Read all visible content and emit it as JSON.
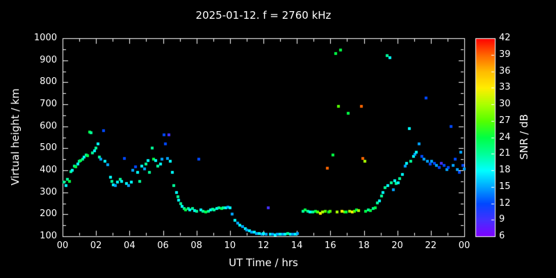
{
  "title": "2025-01-12. f = 2760 kHz",
  "colors": {
    "background": "#000000",
    "foreground": "#ffffff"
  },
  "axes": {
    "x": {
      "label": "UT Time / hrs",
      "min": 0,
      "max": 24,
      "major_tick_hours": 2,
      "minor_tick_hours": 1,
      "tick_labels": [
        "00",
        "02",
        "04",
        "06",
        "08",
        "10",
        "12",
        "14",
        "16",
        "18",
        "20",
        "22",
        "00"
      ]
    },
    "y": {
      "label": "Virtual height / km",
      "min": 100,
      "max": 1000,
      "major_tick": 100,
      "minor_tick": 50,
      "tick_labels": [
        "100",
        "200",
        "300",
        "400",
        "500",
        "600",
        "700",
        "800",
        "900",
        "1000"
      ]
    }
  },
  "colorbar": {
    "label": "SNR / dB",
    "min": 6,
    "max": 42,
    "tick_labels": [
      "6",
      "9",
      "12",
      "15",
      "18",
      "21",
      "24",
      "27",
      "30",
      "33",
      "36",
      "39",
      "42"
    ],
    "stops": [
      [
        6,
        "#8000ff"
      ],
      [
        9,
        "#4430ff"
      ],
      [
        12,
        "#0048ff"
      ],
      [
        15,
        "#00a4ff"
      ],
      [
        18,
        "#00ffff"
      ],
      [
        21,
        "#00ff99"
      ],
      [
        24,
        "#00ff44"
      ],
      [
        27,
        "#55ff00"
      ],
      [
        30,
        "#aaff00"
      ],
      [
        33,
        "#ffee00"
      ],
      [
        36,
        "#ffbb00"
      ],
      [
        39,
        "#ff6600"
      ],
      [
        42,
        "#ff0000"
      ]
    ]
  },
  "chart_data": {
    "type": "scatter",
    "title": "2025-01-12. f = 2760 kHz",
    "xlabel": "UT Time / hrs",
    "ylabel": "Virtual height / km",
    "color_label": "SNR / dB",
    "xlim": [
      0,
      24
    ],
    "ylim": [
      100,
      1000
    ],
    "clim": [
      6,
      42
    ],
    "grid": false,
    "point_format": [
      "ut_hours",
      "virtual_height_km",
      "snr_db"
    ],
    "points": [
      [
        0.1,
        345,
        21
      ],
      [
        0.2,
        330,
        18
      ],
      [
        0.3,
        360,
        21
      ],
      [
        0.4,
        350,
        24
      ],
      [
        0.5,
        395,
        21
      ],
      [
        0.6,
        400,
        18
      ],
      [
        0.7,
        420,
        21
      ],
      [
        0.8,
        415,
        24
      ],
      [
        0.9,
        430,
        18
      ],
      [
        1.0,
        440,
        21
      ],
      [
        1.1,
        445,
        24
      ],
      [
        1.2,
        450,
        21
      ],
      [
        1.3,
        460,
        18
      ],
      [
        1.4,
        470,
        21
      ],
      [
        1.5,
        465,
        24
      ],
      [
        1.6,
        575,
        24
      ],
      [
        1.7,
        570,
        21
      ],
      [
        1.8,
        480,
        21
      ],
      [
        1.9,
        490,
        18
      ],
      [
        2.0,
        500,
        21
      ],
      [
        2.1,
        520,
        18
      ],
      [
        2.2,
        460,
        21
      ],
      [
        2.3,
        450,
        15
      ],
      [
        2.45,
        580,
        12
      ],
      [
        2.55,
        440,
        18
      ],
      [
        2.7,
        425,
        15
      ],
      [
        2.85,
        370,
        18
      ],
      [
        2.95,
        350,
        21
      ],
      [
        3.05,
        335,
        18
      ],
      [
        3.15,
        330,
        15
      ],
      [
        3.3,
        345,
        18
      ],
      [
        3.45,
        360,
        21
      ],
      [
        3.55,
        350,
        18
      ],
      [
        3.7,
        455,
        12
      ],
      [
        3.8,
        340,
        18
      ],
      [
        3.95,
        330,
        15
      ],
      [
        4.1,
        345,
        18
      ],
      [
        4.2,
        400,
        15
      ],
      [
        4.35,
        415,
        12
      ],
      [
        4.5,
        390,
        18
      ],
      [
        4.6,
        350,
        21
      ],
      [
        4.75,
        420,
        18
      ],
      [
        4.9,
        405,
        15
      ],
      [
        5.0,
        430,
        21
      ],
      [
        5.1,
        445,
        18
      ],
      [
        5.2,
        390,
        21
      ],
      [
        5.35,
        500,
        21
      ],
      [
        5.45,
        450,
        24
      ],
      [
        5.55,
        445,
        18
      ],
      [
        5.7,
        420,
        21
      ],
      [
        5.85,
        430,
        18
      ],
      [
        5.95,
        450,
        15
      ],
      [
        6.05,
        560,
        12
      ],
      [
        6.15,
        520,
        12
      ],
      [
        6.25,
        455,
        15
      ],
      [
        6.35,
        560,
        9
      ],
      [
        6.45,
        440,
        18
      ],
      [
        6.55,
        390,
        18
      ],
      [
        6.65,
        330,
        21
      ],
      [
        6.8,
        300,
        18
      ],
      [
        6.9,
        280,
        21
      ],
      [
        6.95,
        265,
        18
      ],
      [
        7.05,
        250,
        21
      ],
      [
        7.15,
        235,
        18
      ],
      [
        7.25,
        225,
        21
      ],
      [
        7.35,
        220,
        24
      ],
      [
        7.5,
        225,
        21
      ],
      [
        7.6,
        220,
        18
      ],
      [
        7.75,
        225,
        21
      ],
      [
        7.9,
        218,
        18
      ],
      [
        8.0,
        215,
        21
      ],
      [
        8.15,
        450,
        12
      ],
      [
        8.25,
        220,
        18
      ],
      [
        8.4,
        215,
        21
      ],
      [
        8.55,
        212,
        24
      ],
      [
        8.7,
        215,
        21
      ],
      [
        8.85,
        220,
        18
      ],
      [
        8.95,
        222,
        21
      ],
      [
        9.05,
        220,
        21
      ],
      [
        9.2,
        225,
        18
      ],
      [
        9.35,
        228,
        21
      ],
      [
        9.5,
        225,
        24
      ],
      [
        9.6,
        230,
        21
      ],
      [
        9.75,
        228,
        18
      ],
      [
        9.9,
        232,
        15
      ],
      [
        10.0,
        228,
        18
      ],
      [
        10.15,
        200,
        15
      ],
      [
        10.3,
        172,
        18
      ],
      [
        10.45,
        160,
        15
      ],
      [
        10.6,
        150,
        18
      ],
      [
        10.75,
        145,
        15
      ],
      [
        10.9,
        136,
        18
      ],
      [
        11.0,
        130,
        15
      ],
      [
        11.15,
        126,
        18
      ],
      [
        11.3,
        120,
        15
      ],
      [
        11.45,
        118,
        18
      ],
      [
        11.6,
        114,
        15
      ],
      [
        11.75,
        112,
        18
      ],
      [
        11.9,
        110,
        15
      ],
      [
        12.0,
        112,
        18
      ],
      [
        12.15,
        110,
        15
      ],
      [
        12.3,
        230,
        9
      ],
      [
        12.4,
        108,
        18
      ],
      [
        12.55,
        110,
        15
      ],
      [
        12.7,
        106,
        18
      ],
      [
        12.85,
        108,
        15
      ],
      [
        13.0,
        110,
        18
      ],
      [
        13.15,
        108,
        15
      ],
      [
        13.3,
        110,
        18
      ],
      [
        13.45,
        112,
        21
      ],
      [
        13.6,
        110,
        18
      ],
      [
        13.75,
        108,
        15
      ],
      [
        13.9,
        110,
        18
      ],
      [
        14.05,
        112,
        15
      ],
      [
        14.35,
        215,
        21
      ],
      [
        14.5,
        220,
        24
      ],
      [
        14.65,
        215,
        21
      ],
      [
        14.8,
        212,
        18
      ],
      [
        14.95,
        210,
        21
      ],
      [
        15.1,
        215,
        24
      ],
      [
        15.25,
        210,
        27
      ],
      [
        15.4,
        205,
        33
      ],
      [
        15.55,
        210,
        30
      ],
      [
        15.7,
        215,
        27
      ],
      [
        15.8,
        410,
        39
      ],
      [
        15.9,
        210,
        24
      ],
      [
        16.0,
        215,
        27
      ],
      [
        16.15,
        470,
        24
      ],
      [
        16.3,
        930,
        24
      ],
      [
        16.4,
        212,
        30
      ],
      [
        16.5,
        690,
        27
      ],
      [
        16.6,
        945,
        24
      ],
      [
        16.7,
        215,
        33
      ],
      [
        16.85,
        210,
        27
      ],
      [
        16.95,
        212,
        24
      ],
      [
        17.05,
        660,
        24
      ],
      [
        17.15,
        215,
        30
      ],
      [
        17.3,
        212,
        33
      ],
      [
        17.45,
        215,
        27
      ],
      [
        17.55,
        220,
        24
      ],
      [
        17.7,
        216,
        30
      ],
      [
        17.85,
        690,
        39
      ],
      [
        17.95,
        455,
        39
      ],
      [
        18.05,
        440,
        30
      ],
      [
        18.1,
        215,
        24
      ],
      [
        18.25,
        220,
        21
      ],
      [
        18.4,
        216,
        24
      ],
      [
        18.55,
        225,
        21
      ],
      [
        18.7,
        230,
        24
      ],
      [
        18.8,
        252,
        21
      ],
      [
        18.95,
        262,
        18
      ],
      [
        19.05,
        282,
        21
      ],
      [
        19.15,
        300,
        18
      ],
      [
        19.25,
        322,
        21
      ],
      [
        19.4,
        920,
        21
      ],
      [
        19.45,
        330,
        18
      ],
      [
        19.55,
        912,
        18
      ],
      [
        19.65,
        342,
        21
      ],
      [
        19.75,
        312,
        15
      ],
      [
        19.85,
        352,
        18
      ],
      [
        19.95,
        340,
        21
      ],
      [
        20.05,
        342,
        18
      ],
      [
        20.15,
        362,
        21
      ],
      [
        20.3,
        382,
        18
      ],
      [
        20.45,
        420,
        15
      ],
      [
        20.55,
        432,
        18
      ],
      [
        20.7,
        590,
        18
      ],
      [
        20.8,
        442,
        21
      ],
      [
        20.95,
        462,
        18
      ],
      [
        21.05,
        472,
        15
      ],
      [
        21.15,
        482,
        18
      ],
      [
        21.3,
        520,
        15
      ],
      [
        21.45,
        462,
        12
      ],
      [
        21.6,
        452,
        15
      ],
      [
        21.7,
        730,
        12
      ],
      [
        21.8,
        442,
        15
      ],
      [
        21.95,
        430,
        12
      ],
      [
        22.05,
        440,
        15
      ],
      [
        22.2,
        432,
        12
      ],
      [
        22.35,
        422,
        15
      ],
      [
        22.5,
        412,
        12
      ],
      [
        22.65,
        432,
        9
      ],
      [
        22.8,
        422,
        12
      ],
      [
        22.95,
        402,
        15
      ],
      [
        23.05,
        412,
        12
      ],
      [
        23.2,
        600,
        12
      ],
      [
        23.35,
        422,
        15
      ],
      [
        23.45,
        452,
        12
      ],
      [
        23.6,
        402,
        15
      ],
      [
        23.7,
        392,
        12
      ],
      [
        23.8,
        482,
        15
      ],
      [
        23.9,
        422,
        12
      ],
      [
        23.98,
        405,
        15
      ]
    ]
  }
}
